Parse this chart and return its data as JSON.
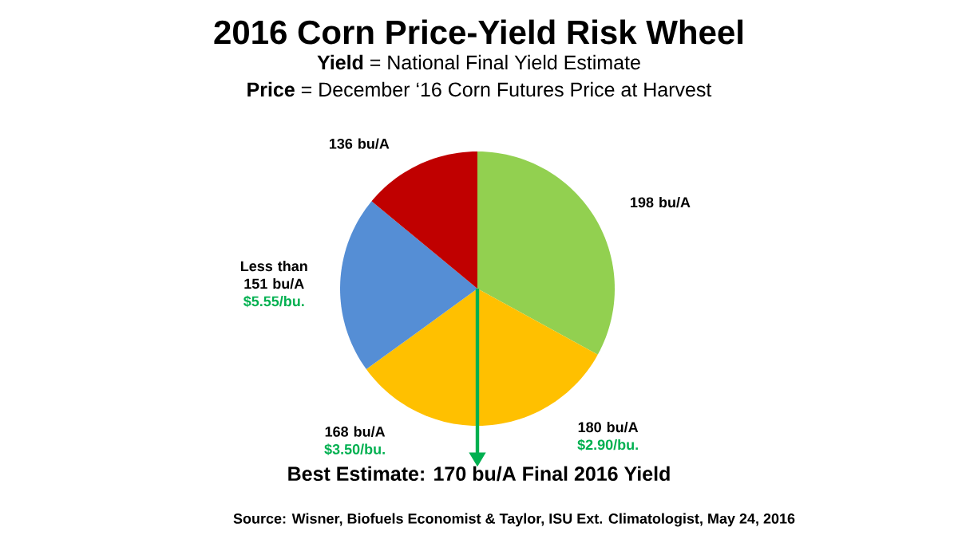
{
  "chart_data": {
    "type": "pie",
    "title": "2016 Corn Price-Yield Risk Wheel",
    "subtitle": "**Yield** = National Final Yield Estimate",
    "categories": [
      "198 bu/A",
      "180 bu/A",
      "168 bu/A",
      "Less than 151 bu/A",
      "136 bu/A"
    ],
    "values": [
      33,
      17,
      15,
      21,
      14
    ],
    "colors": [
      "#92d050",
      "#ffc000",
      "#ffc000",
      "#558ed5",
      "#c00000"
    ],
    "annotations": [
      "**Price** = December ‘16 Corn Futures Price at Harvest",
      "Best Estimate: 170 bu/A Final 2016 Yield",
      "Source: Wisner, Biofuels Economist & Taylor, ISU Ext. Climatologist, May 24, 2016",
      {
        "text": "$2.90/bu.",
        "x": "180 bu/A"
      },
      {
        "text": "$3.50/bu.",
        "x": "168 bu/A"
      },
      {
        "text": "$5.55/bu.",
        "x": "Less than 151 bu/A"
      }
    ]
  }
}
